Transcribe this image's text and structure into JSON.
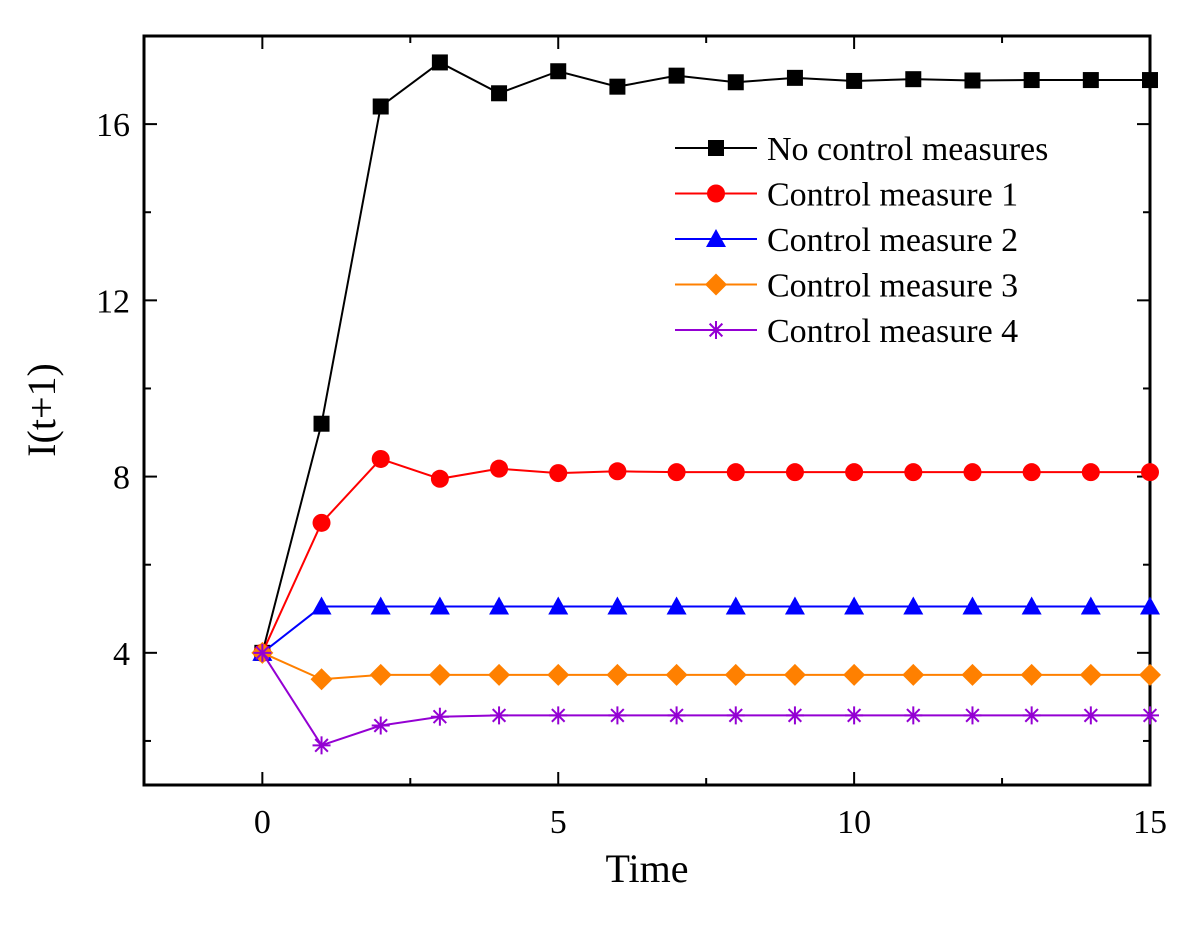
{
  "chart_data": {
    "type": "line",
    "title": "",
    "xlabel": "Time",
    "ylabel": "I(t+1)",
    "xlim": [
      -2,
      15
    ],
    "ylim": [
      1,
      18
    ],
    "x_major_ticks": [
      0,
      5,
      10,
      15
    ],
    "x_minor_ticks": [
      -2.5,
      2.5,
      7.5,
      12.5
    ],
    "y_major_ticks": [
      4,
      8,
      12,
      16
    ],
    "y_minor_ticks": [
      2,
      6,
      10,
      14,
      18
    ],
    "grid": false,
    "legend_position": "top-right",
    "x": [
      0,
      1,
      2,
      3,
      4,
      5,
      6,
      7,
      8,
      9,
      10,
      11,
      12,
      13,
      14,
      15
    ],
    "series": [
      {
        "name": "No control measures",
        "color": "#000000",
        "marker": "square",
        "values": [
          4.0,
          9.2,
          16.4,
          17.4,
          16.7,
          17.2,
          16.85,
          17.1,
          16.95,
          17.05,
          16.98,
          17.02,
          16.99,
          17.0,
          17.0,
          17.0
        ]
      },
      {
        "name": "Control measure 1",
        "color": "#ff0000",
        "marker": "circle",
        "values": [
          4.0,
          6.95,
          8.4,
          7.95,
          8.18,
          8.08,
          8.12,
          8.1,
          8.1,
          8.1,
          8.1,
          8.1,
          8.1,
          8.1,
          8.1,
          8.1
        ]
      },
      {
        "name": "Control measure 2",
        "color": "#0000ff",
        "marker": "triangle",
        "values": [
          4.0,
          5.05,
          5.05,
          5.05,
          5.05,
          5.05,
          5.05,
          5.05,
          5.05,
          5.05,
          5.05,
          5.05,
          5.05,
          5.05,
          5.05,
          5.05
        ]
      },
      {
        "name": "Control measure 3",
        "color": "#ff8000",
        "marker": "diamond",
        "values": [
          4.0,
          3.4,
          3.5,
          3.5,
          3.5,
          3.5,
          3.5,
          3.5,
          3.5,
          3.5,
          3.5,
          3.5,
          3.5,
          3.5,
          3.5,
          3.5
        ]
      },
      {
        "name": "Control measure 4",
        "color": "#9400d3",
        "marker": "star",
        "values": [
          4.0,
          1.9,
          2.35,
          2.55,
          2.58,
          2.58,
          2.58,
          2.58,
          2.58,
          2.58,
          2.58,
          2.58,
          2.58,
          2.58,
          2.58,
          2.58
        ]
      }
    ]
  }
}
